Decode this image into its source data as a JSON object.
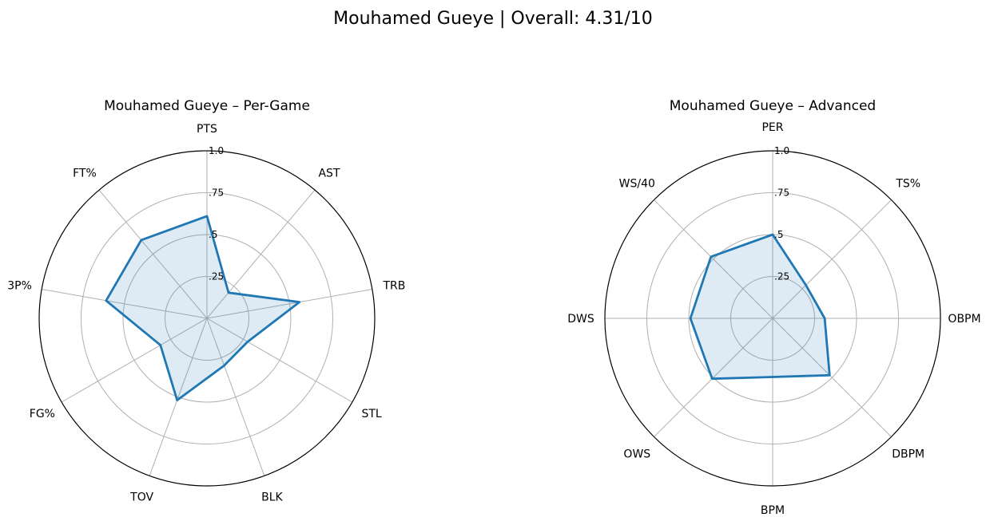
{
  "title": "Mouhamed Gueye | Overall: 4.31/10",
  "colors": {
    "line": "#1f77b4",
    "fill": "#1f77b4",
    "fill_opacity": 0.15
  },
  "chart_data": [
    {
      "type": "radar",
      "title": "Mouhamed Gueye – Per-Game",
      "axes": [
        "PTS",
        "AST",
        "TRB",
        "STL",
        "BLK",
        "TOV",
        "FG%",
        "3P%",
        "FT%"
      ],
      "values": [
        0.61,
        0.2,
        0.56,
        0.28,
        0.3,
        0.52,
        0.32,
        0.61,
        0.61
      ],
      "rlim": [
        0,
        1.0
      ],
      "ticks": [
        0.25,
        0.5,
        0.75,
        1.0
      ],
      "tick_labels": [
        ".25",
        ".5",
        ".75",
        "1.0"
      ],
      "grid": true
    },
    {
      "type": "radar",
      "title": "Mouhamed Gueye – Advanced",
      "axes": [
        "PER",
        "TS%",
        "OBPM",
        "DBPM",
        "BPM",
        "OWS",
        "DWS",
        "WS/40"
      ],
      "values": [
        0.5,
        0.28,
        0.31,
        0.48,
        0.35,
        0.51,
        0.49,
        0.52
      ],
      "rlim": [
        0,
        1.0
      ],
      "ticks": [
        0.25,
        0.5,
        0.75,
        1.0
      ],
      "tick_labels": [
        ".25",
        ".5",
        ".75",
        "1.0"
      ],
      "grid": true
    }
  ]
}
